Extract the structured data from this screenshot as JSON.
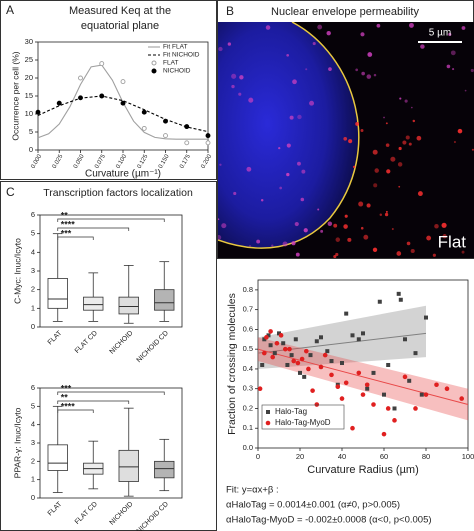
{
  "chart_data": [
    {
      "type": "line",
      "panel": "A",
      "title": [
        "Measured Keq at the",
        "equatorial plane"
      ],
      "x_label": "Curvature (µm⁻¹)",
      "y_label": "Occurrence per cell (%)",
      "xlim": [
        0,
        0.2
      ],
      "ylim": [
        0,
        30
      ],
      "xticks": [
        {
          "value": 0,
          "label": "0.000"
        },
        {
          "value": 0.025,
          "label": "0.025"
        },
        {
          "value": 0.05,
          "label": "0.050"
        },
        {
          "value": 0.075,
          "label": "0.075"
        },
        {
          "value": 0.1,
          "label": "0.100"
        },
        {
          "value": 0.125,
          "label": "0.125"
        },
        {
          "value": 0.15,
          "label": "0.150"
        },
        {
          "value": 0.175,
          "label": "0.175"
        },
        {
          "value": 0.2,
          "label": "0.200"
        }
      ],
      "yticks": [
        0,
        5,
        10,
        15,
        20,
        25,
        30
      ],
      "legend": "top-right",
      "series": [
        {
          "name": "Fit FLAT",
          "color": "#a0a0a0",
          "style": "solid",
          "x": [
            0,
            0.0125,
            0.025,
            0.0375,
            0.05,
            0.0625,
            0.075,
            0.0875,
            0.1,
            0.1125,
            0.125,
            0.1375,
            0.15,
            0.1625,
            0.175,
            0.1875,
            0.2
          ],
          "values": [
            3.4,
            4.5,
            7.2,
            12.0,
            18.2,
            23.1,
            23.6,
            19.4,
            13.2,
            8.0,
            4.9,
            3.5,
            3.1,
            3.0,
            3.0,
            3.0,
            3.0
          ]
        },
        {
          "name": "Fit NICHOID",
          "color": "#000000",
          "style": "dashed",
          "x": [
            0,
            0.025,
            0.05,
            0.075,
            0.1,
            0.125,
            0.15,
            0.175,
            0.2
          ],
          "values": [
            9.6,
            12.3,
            14.4,
            15.0,
            13.7,
            11.2,
            8.5,
            6.4,
            5.1
          ]
        },
        {
          "name": "FLAT",
          "color": "#a0a0a0",
          "style": "open",
          "x": [
            0.025,
            0.05,
            0.075,
            0.1,
            0.125,
            0.15,
            0.175,
            0.2
          ],
          "values": [
            13,
            20,
            24,
            19,
            6,
            4,
            2,
            2
          ]
        },
        {
          "name": "NICHOID",
          "color": "#000000",
          "style": "filled",
          "x": [
            0,
            0.025,
            0.05,
            0.075,
            0.1,
            0.125,
            0.15,
            0.175,
            0.2
          ],
          "values": [
            10.5,
            13,
            14.5,
            15,
            13,
            10.5,
            8,
            6.5,
            4
          ]
        }
      ]
    },
    {
      "type": "box",
      "panel": "C",
      "title": "Transcription factors localization",
      "y_label": "C-Myc: Inuc/Icyto",
      "ylim": [
        0,
        6
      ],
      "yticks": [
        0,
        1,
        2,
        3,
        4,
        5,
        6
      ],
      "categories": [
        "FLAT",
        "FLAT CD",
        "NICHOID",
        "NICHOID CD"
      ],
      "box_colors": [
        "#ffffff",
        "#ececec",
        "#dedede",
        "#b4b4b4"
      ],
      "boxes": {
        "min": [
          0.3,
          0.3,
          0.2,
          0.3
        ],
        "q1": [
          1.0,
          0.9,
          0.7,
          0.9
        ],
        "median": [
          1.5,
          1.2,
          1.1,
          1.3
        ],
        "q3": [
          2.6,
          1.6,
          1.6,
          2.0
        ],
        "max": [
          5.0,
          2.9,
          3.3,
          3.5
        ]
      },
      "significance": [
        "**",
        "****",
        "***"
      ]
    },
    {
      "type": "box",
      "y_label": "PPAR-γ: Inuc/Icyto",
      "ylim": [
        0,
        6
      ],
      "yticks": [
        0,
        1,
        2,
        3,
        4,
        5,
        6
      ],
      "categories": [
        "FLAT",
        "FLAT CD",
        "NICHOID",
        "NICHOID CD"
      ],
      "box_colors": [
        "#ffffff",
        "#ececec",
        "#dedede",
        "#b4b4b4"
      ],
      "boxes": {
        "min": [
          0.3,
          0.5,
          0.1,
          0.4
        ],
        "q1": [
          1.5,
          1.3,
          0.9,
          1.1
        ],
        "median": [
          1.9,
          1.6,
          1.7,
          1.6
        ],
        "q3": [
          2.9,
          1.9,
          2.6,
          2.0
        ],
        "max": [
          5.0,
          3.1,
          4.9,
          3.2
        ]
      },
      "significance": [
        "***",
        "**",
        "****"
      ]
    },
    {
      "type": "scatter",
      "x_label": "Curvature Radius (µm)",
      "y_label": "Fraction of crossing molecules",
      "xlim": [
        0,
        100
      ],
      "ylim": [
        0,
        0.85
      ],
      "xticks": [
        0,
        20,
        40,
        60,
        80,
        100
      ],
      "yticks": [
        {
          "value": 0,
          "label": "0.0"
        },
        0.1,
        0.2,
        0.3,
        0.4,
        0.5,
        0.6,
        0.7,
        0.8
      ],
      "legend": "bottom-left",
      "series": [
        {
          "name": "Halo-Tag",
          "color": "#404040",
          "marker": "square",
          "x": [
            2,
            3,
            5,
            6,
            8,
            10,
            12,
            14,
            16,
            18,
            20,
            22,
            25,
            28,
            30,
            33,
            35,
            38,
            40,
            42,
            45,
            48,
            50,
            52,
            55,
            58,
            60,
            62,
            65,
            67,
            68,
            70,
            72,
            75,
            78,
            80
          ],
          "values": [
            0.42,
            0.55,
            0.57,
            0.52,
            0.48,
            0.58,
            0.53,
            0.42,
            0.47,
            0.55,
            0.38,
            0.36,
            0.47,
            0.54,
            0.56,
            0.49,
            0.44,
            0.32,
            0.43,
            0.68,
            0.57,
            0.55,
            0.58,
            0.3,
            0.38,
            0.74,
            0.27,
            0.42,
            0.2,
            0.78,
            0.75,
            0.55,
            0.34,
            0.48,
            0.27,
            0.66
          ]
        },
        {
          "name": "Halo-Tag-MyoD",
          "color": "#e02020",
          "marker": "circle",
          "x": [
            1,
            3,
            4,
            6,
            7,
            9,
            11,
            13,
            15,
            17,
            19,
            21,
            23,
            24,
            26,
            28,
            30,
            32,
            35,
            38,
            40,
            42,
            45,
            48,
            50,
            52,
            55,
            60,
            62,
            65,
            70,
            75,
            80,
            85,
            90,
            97
          ],
          "values": [
            0.3,
            0.48,
            0.56,
            0.59,
            0.46,
            0.53,
            0.57,
            0.5,
            0.5,
            0.44,
            0.43,
            0.45,
            0.49,
            0.4,
            0.29,
            0.22,
            0.41,
            0.47,
            0.37,
            0.31,
            0.25,
            0.33,
            0.1,
            0.38,
            0.27,
            0.32,
            0.22,
            0.07,
            0.2,
            0.14,
            0.36,
            0.2,
            0.27,
            0.32,
            0.3,
            0.25
          ]
        }
      ],
      "fits": [
        {
          "color": "#808080",
          "x": [
            0,
            80
          ],
          "y": [
            0.48,
            0.58
          ],
          "band_low": [
            0.4,
            0.46
          ],
          "band_high": [
            0.56,
            0.72
          ]
        },
        {
          "color": "#e84848",
          "x": [
            0,
            100
          ],
          "y": [
            0.5,
            0.22
          ],
          "band_low": [
            0.44,
            0.14
          ],
          "band_high": [
            0.56,
            0.3
          ]
        }
      ],
      "annotations": [
        "Fit: y=αx+β :",
        "αHaloTag = 0.0014±0.001 (α≠0, p>0.005)",
        "αHaloTag-MyoD = -0.002±0.0008 (α<0, p<0.005)"
      ]
    }
  ],
  "image_panel": {
    "letter": "B",
    "title": "Nuclear envelope permeability",
    "scale_bar": "5 µm",
    "condition": "Flat"
  }
}
